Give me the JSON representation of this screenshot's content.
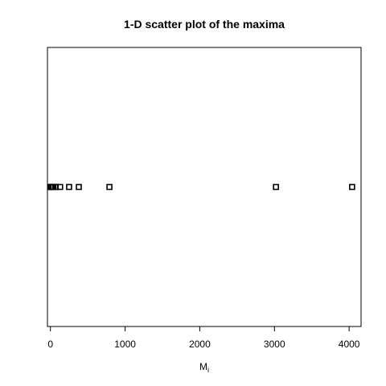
{
  "chart_data": {
    "type": "scatter",
    "title": "1-D scatter plot of the maxima",
    "xlabel": "M",
    "xlabel_subscript": "i",
    "ylabel": "",
    "xlim": [
      -40,
      4160
    ],
    "x_ticks": [
      0,
      1000,
      2000,
      3000,
      4000
    ],
    "x_tick_labels": [
      "0",
      "1000",
      "2000",
      "3000",
      "4000"
    ],
    "x": [
      0,
      12,
      25,
      40,
      70,
      130,
      250,
      380,
      790,
      3020,
      4040
    ],
    "marker": "open-square",
    "grid": false,
    "legend": "none"
  }
}
